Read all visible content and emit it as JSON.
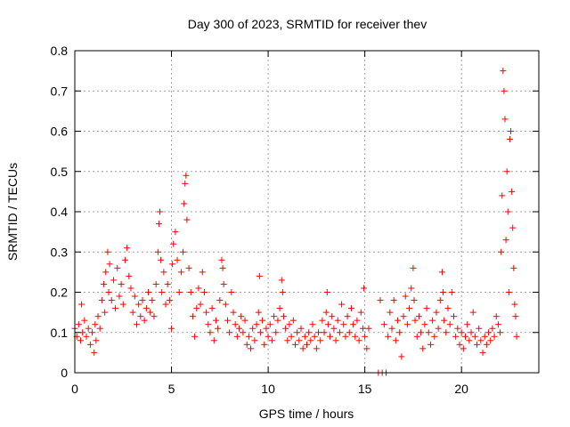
{
  "chart_data": {
    "type": "scatter",
    "title": "Day 300 of 2023, SRMTID for receiver thev",
    "xlabel": "GPS time / hours",
    "ylabel": "SRMTID / TECUs",
    "xlim": [
      0,
      24
    ],
    "ylim": [
      0,
      0.8
    ],
    "x_ticks": [
      0,
      5,
      10,
      15,
      20
    ],
    "x_tick_labels": [
      "0",
      "5",
      "10",
      "15",
      "20"
    ],
    "y_ticks": [
      0,
      0.1,
      0.2,
      0.3,
      0.4,
      0.5,
      0.6,
      0.7,
      0.8
    ],
    "y_tick_labels": [
      "0",
      "0.1",
      "0.2",
      "0.3",
      "0.4",
      "0.5",
      "0.6",
      "0.7",
      "0.8"
    ],
    "grid": true,
    "marker": "plus",
    "color": "#ff0000",
    "series": [
      {
        "name": "SRMTID",
        "points": [
          [
            0.0,
            0.11
          ],
          [
            0.1,
            0.09
          ],
          [
            0.2,
            0.12
          ],
          [
            0.3,
            0.08
          ],
          [
            0.35,
            0.17
          ],
          [
            0.4,
            0.1
          ],
          [
            0.5,
            0.13
          ],
          [
            0.6,
            0.09
          ],
          [
            0.7,
            0.11
          ],
          [
            0.8,
            0.07
          ],
          [
            0.9,
            0.1
          ],
          [
            1.0,
            0.05
          ],
          [
            1.05,
            0.12
          ],
          [
            1.1,
            0.08
          ],
          [
            1.2,
            0.14
          ],
          [
            1.3,
            0.11
          ],
          [
            1.4,
            0.18
          ],
          [
            1.5,
            0.22
          ],
          [
            1.55,
            0.15
          ],
          [
            1.6,
            0.25
          ],
          [
            1.7,
            0.3
          ],
          [
            1.75,
            0.2
          ],
          [
            1.8,
            0.27
          ],
          [
            1.9,
            0.18
          ],
          [
            2.0,
            0.23
          ],
          [
            2.1,
            0.16
          ],
          [
            2.2,
            0.26
          ],
          [
            2.3,
            0.19
          ],
          [
            2.4,
            0.22
          ],
          [
            2.5,
            0.17
          ],
          [
            2.6,
            0.28
          ],
          [
            2.7,
            0.31
          ],
          [
            2.8,
            0.24
          ],
          [
            2.9,
            0.21
          ],
          [
            3.0,
            0.15
          ],
          [
            3.1,
            0.19
          ],
          [
            3.2,
            0.12
          ],
          [
            3.3,
            0.17
          ],
          [
            3.4,
            0.14
          ],
          [
            3.5,
            0.18
          ],
          [
            3.6,
            0.13
          ],
          [
            3.7,
            0.16
          ],
          [
            3.8,
            0.2
          ],
          [
            3.9,
            0.15
          ],
          [
            4.0,
            0.18
          ],
          [
            4.1,
            0.14
          ],
          [
            4.2,
            0.22
          ],
          [
            4.3,
            0.3
          ],
          [
            4.35,
            0.37
          ],
          [
            4.4,
            0.4
          ],
          [
            4.45,
            0.28
          ],
          [
            4.5,
            0.2
          ],
          [
            4.6,
            0.25
          ],
          [
            4.7,
            0.17
          ],
          [
            4.8,
            0.22
          ],
          [
            4.9,
            0.18
          ],
          [
            5.0,
            0.11
          ],
          [
            5.05,
            0.27
          ],
          [
            5.1,
            0.32
          ],
          [
            5.2,
            0.35
          ],
          [
            5.3,
            0.28
          ],
          [
            5.4,
            0.2
          ],
          [
            5.5,
            0.25
          ],
          [
            5.6,
            0.3
          ],
          [
            5.65,
            0.42
          ],
          [
            5.7,
            0.47
          ],
          [
            5.75,
            0.49
          ],
          [
            5.8,
            0.38
          ],
          [
            5.9,
            0.26
          ],
          [
            6.0,
            0.2
          ],
          [
            6.1,
            0.14
          ],
          [
            6.2,
            0.09
          ],
          [
            6.3,
            0.16
          ],
          [
            6.4,
            0.21
          ],
          [
            6.5,
            0.17
          ],
          [
            6.6,
            0.25
          ],
          [
            6.7,
            0.2
          ],
          [
            6.8,
            0.15
          ],
          [
            6.9,
            0.12
          ],
          [
            7.0,
            0.1
          ],
          [
            7.1,
            0.16
          ],
          [
            7.2,
            0.08
          ],
          [
            7.3,
            0.13
          ],
          [
            7.4,
            0.11
          ],
          [
            7.5,
            0.18
          ],
          [
            7.6,
            0.28
          ],
          [
            7.65,
            0.26
          ],
          [
            7.7,
            0.22
          ],
          [
            7.8,
            0.17
          ],
          [
            7.9,
            0.13
          ],
          [
            8.0,
            0.1
          ],
          [
            8.1,
            0.2
          ],
          [
            8.2,
            0.15
          ],
          [
            8.3,
            0.12
          ],
          [
            8.4,
            0.09
          ],
          [
            8.5,
            0.11
          ],
          [
            8.6,
            0.14
          ],
          [
            8.7,
            0.1
          ],
          [
            8.8,
            0.13
          ],
          [
            8.9,
            0.07
          ],
          [
            9.0,
            0.09
          ],
          [
            9.1,
            0.06
          ],
          [
            9.2,
            0.11
          ],
          [
            9.3,
            0.08
          ],
          [
            9.4,
            0.12
          ],
          [
            9.5,
            0.15
          ],
          [
            9.55,
            0.24
          ],
          [
            9.6,
            0.1
          ],
          [
            9.7,
            0.13
          ],
          [
            9.8,
            0.07
          ],
          [
            9.9,
            0.11
          ],
          [
            10.0,
            0.09
          ],
          [
            10.1,
            0.12
          ],
          [
            10.2,
            0.08
          ],
          [
            10.3,
            0.14
          ],
          [
            10.4,
            0.1
          ],
          [
            10.5,
            0.13
          ],
          [
            10.6,
            0.16
          ],
          [
            10.7,
            0.23
          ],
          [
            10.75,
            0.2
          ],
          [
            10.8,
            0.14
          ],
          [
            10.9,
            0.11
          ],
          [
            11.0,
            0.08
          ],
          [
            11.1,
            0.12
          ],
          [
            11.2,
            0.09
          ],
          [
            11.3,
            0.13
          ],
          [
            11.4,
            0.07
          ],
          [
            11.5,
            0.1
          ],
          [
            11.6,
            0.08
          ],
          [
            11.7,
            0.11
          ],
          [
            11.8,
            0.06
          ],
          [
            11.9,
            0.09
          ],
          [
            12.0,
            0.07
          ],
          [
            12.1,
            0.1
          ],
          [
            12.2,
            0.08
          ],
          [
            12.3,
            0.12
          ],
          [
            12.4,
            0.09
          ],
          [
            12.5,
            0.06
          ],
          [
            12.6,
            0.1
          ],
          [
            12.7,
            0.08
          ],
          [
            12.8,
            0.13
          ],
          [
            12.9,
            0.1
          ],
          [
            13.0,
            0.15
          ],
          [
            13.05,
            0.2
          ],
          [
            13.1,
            0.12
          ],
          [
            13.2,
            0.09
          ],
          [
            13.3,
            0.14
          ],
          [
            13.4,
            0.11
          ],
          [
            13.5,
            0.08
          ],
          [
            13.6,
            0.13
          ],
          [
            13.7,
            0.1
          ],
          [
            13.8,
            0.17
          ],
          [
            13.9,
            0.12
          ],
          [
            14.0,
            0.09
          ],
          [
            14.1,
            0.14
          ],
          [
            14.2,
            0.1
          ],
          [
            14.3,
            0.16
          ],
          [
            14.4,
            0.12
          ],
          [
            14.5,
            0.09
          ],
          [
            14.6,
            0.13
          ],
          [
            14.7,
            0.08
          ],
          [
            14.8,
            0.15
          ],
          [
            14.9,
            0.11
          ],
          [
            14.95,
            0.21
          ],
          [
            15.0,
            0.09
          ],
          [
            15.1,
            0.06
          ],
          [
            15.2,
            0.11
          ],
          [
            15.7,
            0.0
          ],
          [
            15.8,
            0.18
          ],
          [
            15.9,
            0.0
          ],
          [
            16.0,
            0.12
          ],
          [
            16.1,
            0.0
          ],
          [
            16.2,
            0.09
          ],
          [
            16.3,
            0.15
          ],
          [
            16.4,
            0.11
          ],
          [
            16.5,
            0.18
          ],
          [
            16.6,
            0.08
          ],
          [
            16.7,
            0.13
          ],
          [
            16.8,
            0.1
          ],
          [
            16.9,
            0.04
          ],
          [
            17.0,
            0.14
          ],
          [
            17.1,
            0.19
          ],
          [
            17.2,
            0.12
          ],
          [
            17.3,
            0.16
          ],
          [
            17.4,
            0.21
          ],
          [
            17.5,
            0.26
          ],
          [
            17.55,
            0.18
          ],
          [
            17.6,
            0.13
          ],
          [
            17.7,
            0.09
          ],
          [
            17.8,
            0.14
          ],
          [
            17.9,
            0.1
          ],
          [
            18.0,
            0.06
          ],
          [
            18.1,
            0.12
          ],
          [
            18.2,
            0.16
          ],
          [
            18.3,
            0.1
          ],
          [
            18.4,
            0.07
          ],
          [
            18.5,
            0.13
          ],
          [
            18.6,
            0.09
          ],
          [
            18.7,
            0.15
          ],
          [
            18.8,
            0.11
          ],
          [
            18.9,
            0.18
          ],
          [
            19.0,
            0.25
          ],
          [
            19.05,
            0.2
          ],
          [
            19.1,
            0.13
          ],
          [
            19.2,
            0.1
          ],
          [
            19.3,
            0.16
          ],
          [
            19.4,
            0.12
          ],
          [
            19.5,
            0.2
          ],
          [
            19.6,
            0.14
          ],
          [
            19.7,
            0.09
          ],
          [
            19.8,
            0.11
          ],
          [
            19.9,
            0.07
          ],
          [
            20.0,
            0.1
          ],
          [
            20.1,
            0.06
          ],
          [
            20.2,
            0.09
          ],
          [
            20.3,
            0.12
          ],
          [
            20.4,
            0.08
          ],
          [
            20.5,
            0.1
          ],
          [
            20.6,
            0.15
          ],
          [
            20.7,
            0.09
          ],
          [
            20.8,
            0.07
          ],
          [
            20.9,
            0.11
          ],
          [
            21.0,
            0.08
          ],
          [
            21.1,
            0.05
          ],
          [
            21.2,
            0.09
          ],
          [
            21.3,
            0.07
          ],
          [
            21.4,
            0.1
          ],
          [
            21.5,
            0.08
          ],
          [
            21.6,
            0.11
          ],
          [
            21.7,
            0.09
          ],
          [
            21.8,
            0.14
          ],
          [
            21.9,
            0.12
          ],
          [
            22.0,
            0.1
          ],
          [
            22.05,
            0.3
          ],
          [
            22.1,
            0.44
          ],
          [
            22.15,
            0.75
          ],
          [
            22.2,
            0.7
          ],
          [
            22.25,
            0.63
          ],
          [
            22.3,
            0.33
          ],
          [
            22.35,
            0.5
          ],
          [
            22.4,
            0.4
          ],
          [
            22.45,
            0.2
          ],
          [
            22.5,
            0.58
          ],
          [
            22.55,
            0.6
          ],
          [
            22.6,
            0.45
          ],
          [
            22.65,
            0.36
          ],
          [
            22.7,
            0.26
          ],
          [
            22.75,
            0.17
          ],
          [
            22.8,
            0.14
          ],
          [
            22.85,
            0.09
          ]
        ]
      }
    ]
  }
}
